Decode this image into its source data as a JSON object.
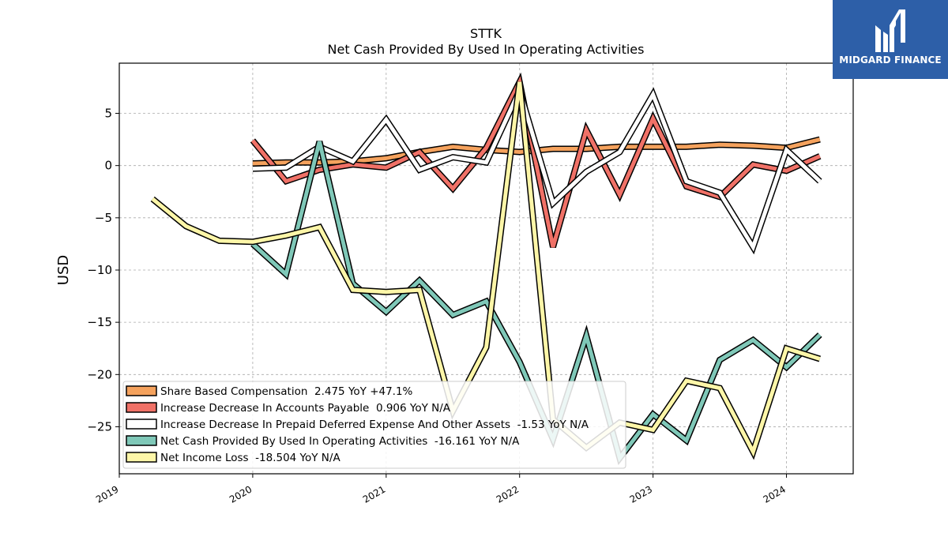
{
  "chart_data": {
    "type": "line",
    "title": "STTK",
    "subtitle": "Net Cash Provided By Used In Operating Activities",
    "xlabel": "",
    "ylabel": "USD",
    "xlim": [
      2019.0,
      2024.5
    ],
    "ylim": [
      -29.5,
      9.8
    ],
    "x_ticks": [
      "2019",
      "2020",
      "2021",
      "2022",
      "2023",
      "2024"
    ],
    "y_ticks": [
      5,
      0,
      -5,
      -10,
      -15,
      -20,
      -25
    ],
    "grid": true,
    "legend_position": "lower-left",
    "series": [
      {
        "name": "Share Based Compensation",
        "legend": "Share Based Compensation  2.475 YoY +47.1%",
        "color": "#f5a25d",
        "x": [
          2020.0,
          2020.25,
          2020.5,
          2020.75,
          2021.0,
          2021.25,
          2021.5,
          2021.75,
          2022.0,
          2022.25,
          2022.5,
          2022.75,
          2023.0,
          2023.25,
          2023.5,
          2023.75,
          2024.0,
          2024.25
        ],
        "y": [
          0.2,
          0.3,
          0.3,
          0.4,
          0.7,
          1.3,
          1.8,
          1.5,
          1.3,
          1.6,
          1.6,
          1.8,
          1.8,
          1.8,
          2.0,
          1.9,
          1.7,
          2.5
        ]
      },
      {
        "name": "Increase Decrease In Accounts Payable",
        "legend": "Increase Decrease In Accounts Payable  0.906 YoY N/A",
        "color": "#f07167",
        "x": [
          2020.0,
          2020.25,
          2020.5,
          2020.75,
          2021.0,
          2021.25,
          2021.5,
          2021.75,
          2022.0,
          2022.25,
          2022.5,
          2022.75,
          2023.0,
          2023.25,
          2023.5,
          2023.75,
          2024.0,
          2024.25
        ],
        "y": [
          2.4,
          -1.5,
          -0.4,
          0.1,
          -0.2,
          1.3,
          -2.2,
          1.7,
          8.0,
          -7.8,
          3.4,
          -2.8,
          4.5,
          -2.0,
          -3.0,
          0.1,
          -0.5,
          0.9
        ]
      },
      {
        "name": "Increase Decrease In Prepaid Deferred Expense And Other Assets",
        "legend": "Increase Decrease In Prepaid Deferred Expense And Other Assets  -1.53 YoY N/A",
        "color": "#ffffff",
        "x": [
          2020.0,
          2020.25,
          2020.5,
          2020.75,
          2021.0,
          2021.25,
          2021.5,
          2021.75,
          2022.0,
          2022.25,
          2022.5,
          2022.75,
          2023.0,
          2023.25,
          2023.5,
          2023.75,
          2024.0,
          2024.25
        ],
        "y": [
          -0.3,
          -0.2,
          1.8,
          0.4,
          4.4,
          -0.4,
          0.8,
          0.3,
          7.2,
          -3.6,
          -0.6,
          1.3,
          6.8,
          -1.5,
          -2.6,
          -7.8,
          1.5,
          -1.5
        ]
      },
      {
        "name": "Net Cash Provided By Used In Operating Activities",
        "legend": "Net Cash Provided By Used In Operating Activities  -16.161 YoY N/A",
        "color": "#7fc8b8",
        "x": [
          2020.0,
          2020.25,
          2020.5,
          2020.75,
          2021.0,
          2021.25,
          2021.5,
          2021.75,
          2022.0,
          2022.25,
          2022.5,
          2022.75,
          2023.0,
          2023.25,
          2023.5,
          2023.75,
          2024.0,
          2024.25
        ],
        "y": [
          -7.5,
          -10.4,
          2.3,
          -11.3,
          -14.0,
          -11.0,
          -14.3,
          -13.0,
          -18.8,
          -26.2,
          -16.3,
          -28.0,
          -23.8,
          -26.3,
          -18.6,
          -16.7,
          -19.3,
          -16.2
        ]
      },
      {
        "name": "Net Income Loss",
        "legend": "Net Income Loss  -18.504 YoY N/A",
        "color": "#fdf6a8",
        "x": [
          2019.25,
          2019.5,
          2019.75,
          2020.0,
          2020.25,
          2020.5,
          2020.75,
          2021.0,
          2021.25,
          2021.5,
          2021.75,
          2022.0,
          2022.25,
          2022.5,
          2022.75,
          2023.0,
          2023.25,
          2023.5,
          2023.75,
          2024.0,
          2024.25
        ],
        "y": [
          -3.2,
          -5.8,
          -7.2,
          -7.3,
          -6.7,
          -5.9,
          -11.9,
          -12.1,
          -11.9,
          -23.5,
          -17.4,
          8.0,
          -24.3,
          -27.0,
          -24.6,
          -25.3,
          -20.6,
          -21.3,
          -27.4,
          -17.5,
          -18.5
        ]
      }
    ]
  },
  "logo": {
    "text": "MIDGARD FINANCE",
    "icon": "midgard-logo-icon"
  }
}
